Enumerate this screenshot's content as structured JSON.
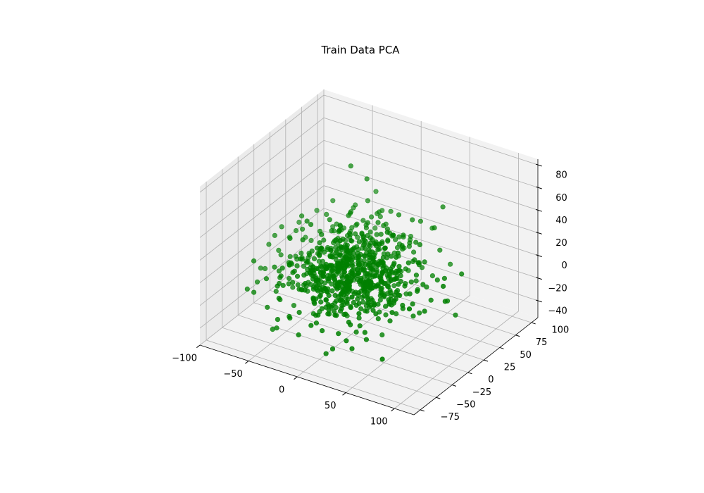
{
  "chart_data": {
    "type": "scatter",
    "projection": "3d",
    "title": "Train Data PCA",
    "xlabel": "",
    "ylabel": "",
    "zlabel": "",
    "xlim": [
      -100,
      120
    ],
    "ylim": [
      -85,
      110
    ],
    "zlim": [
      -55,
      85
    ],
    "xticks": [
      -100,
      -50,
      0,
      50,
      100
    ],
    "yticks": [
      -75,
      -50,
      -25,
      0,
      25,
      50,
      75,
      100
    ],
    "zticks": [
      -40,
      -20,
      0,
      20,
      40,
      60,
      80
    ],
    "xtick_labels": [
      "−100",
      "−50",
      "0",
      "50",
      "100"
    ],
    "ytick_labels": [
      "−75",
      "−50",
      "−25",
      "0",
      "25",
      "50",
      "75",
      "100"
    ],
    "ztick_labels": [
      "−40",
      "−20",
      "0",
      "20",
      "40",
      "60",
      "80"
    ],
    "marker_color": "#008000",
    "grid": true,
    "n_points": 800,
    "distribution": {
      "x_mean": 0,
      "x_sd": 30,
      "y_mean": 0,
      "y_sd": 30,
      "z_mean": 0,
      "z_sd": 16
    },
    "extreme_points": [
      {
        "x": -20,
        "y": 30,
        "z": 75
      },
      {
        "x": -10,
        "y": 40,
        "z": 62
      },
      {
        "x": 10,
        "y": -55,
        "z": -45
      },
      {
        "x": -70,
        "y": 30,
        "z": -20
      },
      {
        "x": 90,
        "y": 10,
        "z": -5
      },
      {
        "x": 60,
        "y": -20,
        "z": 20
      },
      {
        "x": -80,
        "y": -20,
        "z": -10
      },
      {
        "x": 40,
        "y": -60,
        "z": -30
      }
    ]
  }
}
